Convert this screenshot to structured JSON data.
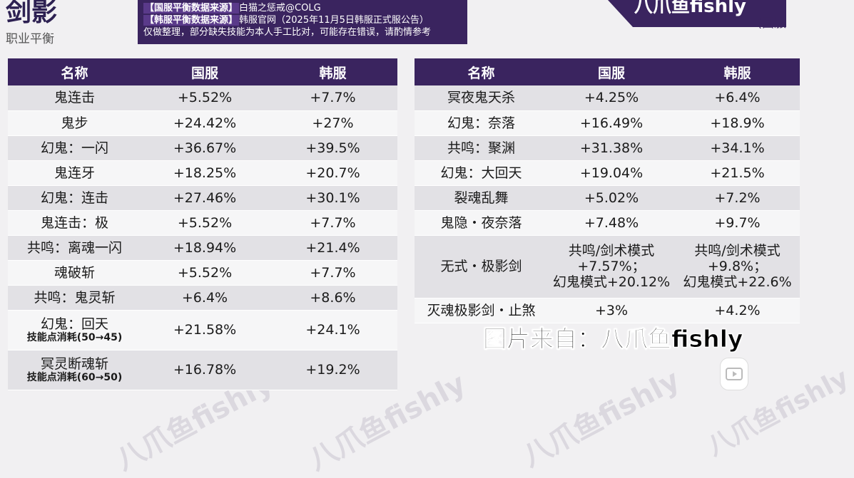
{
  "header": {
    "title": "剑影",
    "subtitle": "职业平衡",
    "brand": "八爪鱼fishly",
    "region_label": "(国服"
  },
  "sources": [
    {
      "tag": "【国服平衡数据来源】",
      "text": "白猫之惩戒@COLG"
    },
    {
      "tag": "【韩服平衡数据来源】",
      "text": "韩服官网（2025年11月5日韩服正式服公告）"
    },
    {
      "tag": "",
      "text": "仅做整理，部分缺失技能为本人手工比对，可能存在错误，请酌情参考"
    }
  ],
  "columns": [
    "名称",
    "国服",
    "韩服"
  ],
  "left_table": [
    {
      "name": "鬼连击",
      "cn": "+5.52%",
      "kr": "+7.7%"
    },
    {
      "name": "鬼步",
      "cn": "+24.42%",
      "kr": "+27%"
    },
    {
      "name": "幻鬼：一闪",
      "cn": "+36.67%",
      "kr": "+39.5%"
    },
    {
      "name": "鬼连牙",
      "cn": "+18.25%",
      "kr": "+20.7%"
    },
    {
      "name": "幻鬼：连击",
      "cn": "+27.46%",
      "kr": "+30.1%"
    },
    {
      "name": "鬼连击：极",
      "cn": "+5.52%",
      "kr": "+7.7%"
    },
    {
      "name": "共鸣：离魂一闪",
      "cn": "+18.94%",
      "kr": "+21.4%"
    },
    {
      "name": "魂破斩",
      "cn": "+5.52%",
      "kr": "+7.7%"
    },
    {
      "name": "共鸣：鬼灵斩",
      "cn": "+6.4%",
      "kr": "+8.6%"
    },
    {
      "name": "幻鬼：回天",
      "note": "技能点消耗(50→45)",
      "cn": "+21.58%",
      "kr": "+24.1%"
    },
    {
      "name": "冥灵断魂斩",
      "note": "技能点消耗(60→50)",
      "cn": "+16.78%",
      "kr": "+19.2%"
    }
  ],
  "right_table": [
    {
      "name": "冥夜鬼天杀",
      "cn": "+4.25%",
      "kr": "+6.4%"
    },
    {
      "name": "幻鬼：奈落",
      "cn": "+16.49%",
      "kr": "+18.9%"
    },
    {
      "name": "共鸣：聚渊",
      "cn": "+31.38%",
      "kr": "+34.1%"
    },
    {
      "name": "幻鬼：大回天",
      "cn": "+19.04%",
      "kr": "+21.5%"
    },
    {
      "name": "裂魂乱舞",
      "cn": "+5.02%",
      "kr": "+7.2%"
    },
    {
      "name": "鬼隐・夜奈落",
      "cn": "+7.48%",
      "kr": "+9.7%"
    },
    {
      "name": "无式・极影剑",
      "cn_lines": [
        "共鸣/剑术模式",
        "+7.57%；",
        "幻鬼模式+20.12%"
      ],
      "kr_lines": [
        "共鸣/剑术模式",
        "+9.8%；",
        "幻鬼模式+22.6%"
      ]
    },
    {
      "name": "灭魂极影剑・止煞",
      "cn": "+3%",
      "kr": "+4.2%"
    }
  ],
  "caption": "图片来自：八爪鱼fishly",
  "watermark": "八爪鱼fishly"
}
